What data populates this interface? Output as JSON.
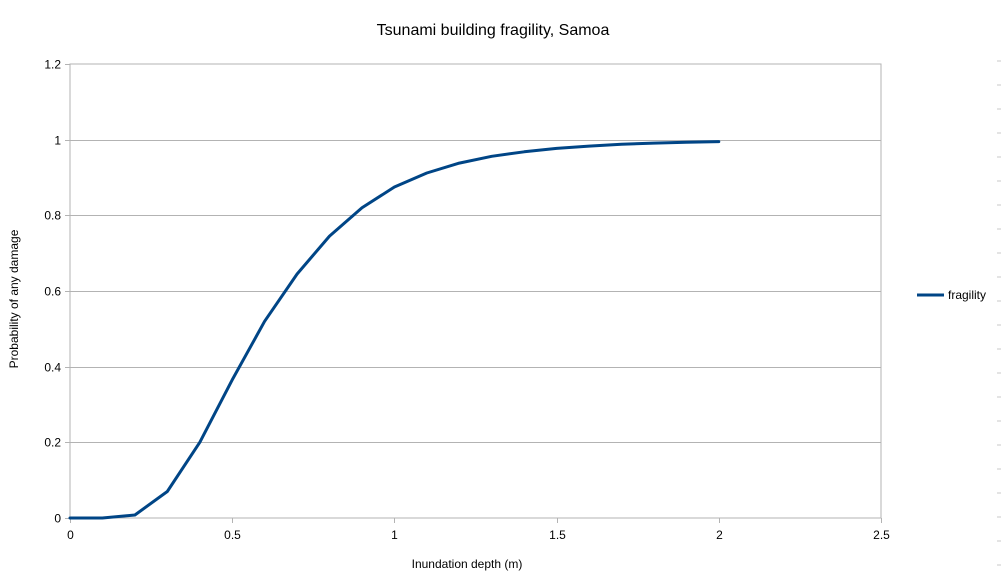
{
  "chart_data": {
    "type": "line",
    "title": "Tsunami building fragility, Samoa",
    "xlabel": "Inundation depth (m)",
    "ylabel": "Probability of any damage",
    "xlim": [
      0,
      2.5
    ],
    "ylim": [
      0,
      1.2
    ],
    "x_ticks": [
      "0",
      "0.5",
      "1",
      "1.5",
      "2",
      "2.5"
    ],
    "y_ticks": [
      "0",
      "0.2",
      "0.4",
      "0.6",
      "0.8",
      "1",
      "1.2"
    ],
    "grid": true,
    "legend_position": "right",
    "series": [
      {
        "name": "fragility",
        "color": "#004586",
        "x": [
          0,
          0.1,
          0.2,
          0.3,
          0.4,
          0.5,
          0.6,
          0.7,
          0.8,
          0.9,
          1.0,
          1.1,
          1.2,
          1.3,
          1.4,
          1.5,
          1.6,
          1.7,
          1.8,
          1.9,
          2.0
        ],
        "y": [
          0,
          0,
          0.008,
          0.07,
          0.2,
          0.365,
          0.52,
          0.645,
          0.745,
          0.82,
          0.875,
          0.912,
          0.938,
          0.956,
          0.968,
          0.977,
          0.983,
          0.988,
          0.991,
          0.993,
          0.995
        ]
      }
    ]
  }
}
